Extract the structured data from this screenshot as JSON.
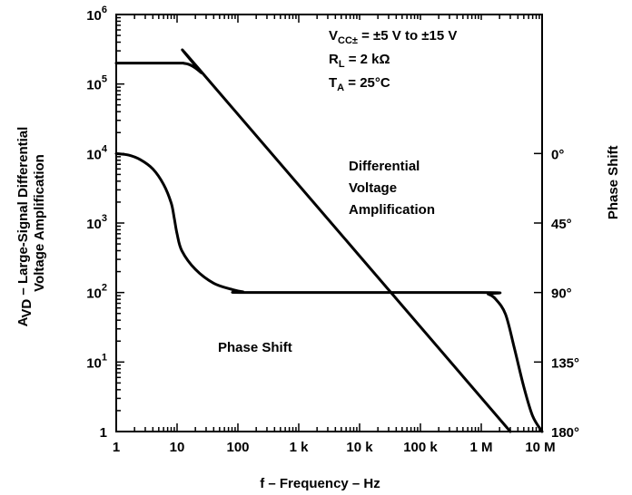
{
  "chart_data": {
    "type": "line",
    "xscale": "log",
    "x_range": [
      1,
      10000000
    ],
    "y_left_scale": "log",
    "y_left_range": [
      1,
      1000000
    ],
    "y_right_range_deg": [
      0,
      180
    ],
    "grid": false,
    "x_ticks": [
      "1",
      "10",
      "100",
      "1 k",
      "10 k",
      "100 k",
      "1 M",
      "10 M"
    ],
    "y_left_ticks": [
      {
        "base": "1",
        "exp": ""
      },
      {
        "base": "10",
        "exp": "1"
      },
      {
        "base": "10",
        "exp": "2"
      },
      {
        "base": "10",
        "exp": "3"
      },
      {
        "base": "10",
        "exp": "4"
      },
      {
        "base": "10",
        "exp": "5"
      },
      {
        "base": "10",
        "exp": "6"
      }
    ],
    "y_right_ticks": [
      {
        "value": 0,
        "label": "0°"
      },
      {
        "value": 45,
        "label": "45°"
      },
      {
        "value": 90,
        "label": "90°"
      },
      {
        "value": 135,
        "label": "135°"
      },
      {
        "value": 180,
        "label": "180°"
      }
    ],
    "xlabel": "f – Frequency – Hz",
    "ylabel_left_line1": {
      "pre": "A",
      "sub": "VD",
      "post": " – Large-Signal Differential"
    },
    "ylabel_left_line2": "Voltage Amplification",
    "ylabel_right": "Phase Shift",
    "conditions": [
      {
        "pre": "V",
        "sub": "CC±",
        "post": " = ±5 V to ±15 V"
      },
      {
        "pre": "R",
        "sub": "L",
        "post": " = 2 kΩ"
      },
      {
        "pre": "T",
        "sub": "A",
        "post": " = 25°C"
      }
    ],
    "series": [
      {
        "name": "Differential Voltage Amplification",
        "label_lines": [
          "Differential",
          "Voltage",
          "Amplification"
        ],
        "axis": "left",
        "x": [
          1,
          10,
          13,
          16,
          20,
          25,
          30,
          3000000
        ],
        "y": [
          200000,
          200000,
          198000,
          190000,
          170000,
          145000,
          125000,
          1
        ]
      },
      {
        "name": "Phase Shift",
        "label_lines": [
          "Phase Shift"
        ],
        "axis": "right",
        "x": [
          1,
          1.6,
          2.5,
          4,
          6,
          8,
          9,
          10,
          12,
          20,
          40,
          80,
          120,
          170,
          1000000,
          1300000,
          1700000,
          2500000,
          3500000,
          5000000,
          7000000,
          10000000
        ],
        "y": [
          0,
          1,
          4,
          10,
          20,
          32,
          42,
          52,
          63,
          75,
          84,
          88,
          89.5,
          90,
          90,
          91,
          94,
          104,
          126,
          151,
          170,
          180
        ]
      }
    ]
  }
}
